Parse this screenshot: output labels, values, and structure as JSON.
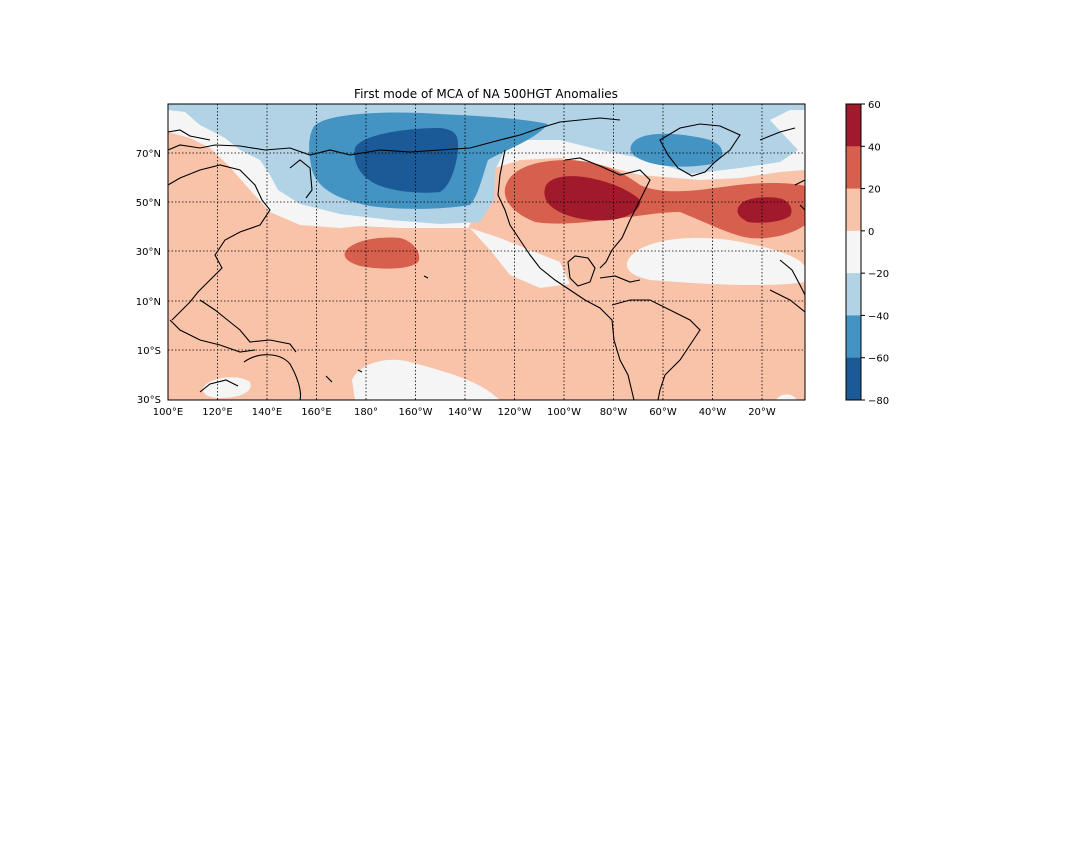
{
  "figure": {
    "title": "First mode of MCA of NA 500HGT Anomalies",
    "map": {
      "projection": "cylindrical",
      "lon_range": [
        100,
        360
      ],
      "lat_range": [
        -30,
        90
      ],
      "meridian_labels": [
        "100°E",
        "120°E",
        "140°E",
        "160°E",
        "180°",
        "160°W",
        "140°W",
        "120°W",
        "100°W",
        "80°W",
        "60°W",
        "40°W",
        "20°W"
      ],
      "parallel_labels": [
        "70°N",
        "50°N",
        "30°N",
        "10°N",
        "10°S",
        "30°S"
      ],
      "gridlines": "dotted",
      "coastlines": true
    },
    "colorbar": {
      "levels": [
        -80,
        -60,
        -40,
        -20,
        0,
        20,
        40,
        60
      ],
      "tick_labels": [
        "60",
        "40",
        "20",
        "0",
        "−20",
        "−40",
        "−60",
        "−80"
      ],
      "colors": [
        "#1b5a96",
        "#4393c3",
        "#b2d3e6",
        "#f5f5f5",
        "#f9c3a9",
        "#d6604d",
        "#a01a2c"
      ],
      "colormap": "RdBu_r"
    }
  }
}
